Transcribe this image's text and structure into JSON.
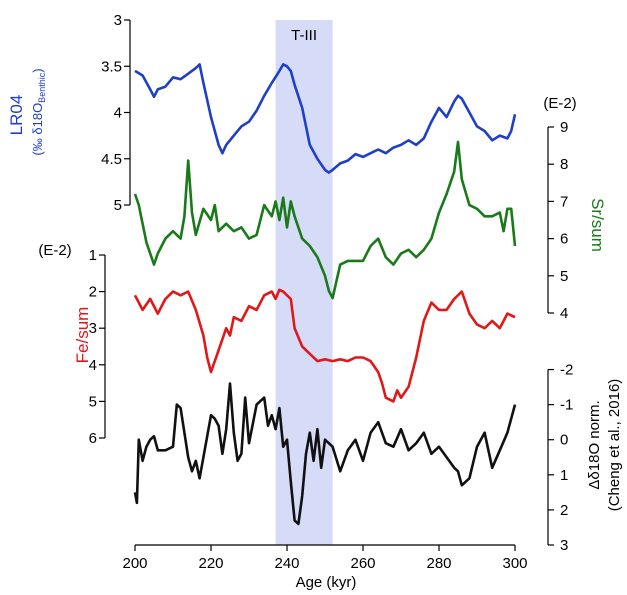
{
  "chart_data": {
    "type": "line",
    "xlabel": "Age (kyr)",
    "xlim": [
      200,
      300
    ],
    "x_ticks": [
      200,
      220,
      240,
      260,
      280,
      300
    ],
    "highlight": {
      "label": "T-III",
      "x_start": 237,
      "x_end": 252,
      "color": "#d6dcf8"
    },
    "series": [
      {
        "name": "LR04",
        "ylabel": "LR04",
        "ylabel_sub": "(‰ δ18O",
        "ylabel_subscript": "Benthic",
        "ylabel_close": ")",
        "color": "#1f3fc8",
        "axis_side": "left",
        "inverted": true,
        "ylim": [
          3,
          5
        ],
        "ticks": [
          3,
          3.5,
          4,
          4.5,
          5
        ],
        "tick_labels": [
          "3",
          "3.5",
          "4",
          "4.5",
          "5"
        ],
        "x": [
          200,
          202,
          204,
          205,
          206,
          208,
          210,
          212,
          214,
          216,
          217,
          218,
          220,
          222,
          223,
          224,
          226,
          228,
          230,
          232,
          234,
          236,
          238,
          239,
          240,
          241,
          242,
          244,
          245,
          246,
          248,
          250,
          251,
          252,
          254,
          256,
          258,
          260,
          262,
          264,
          266,
          268,
          270,
          272,
          274,
          276,
          278,
          280,
          282,
          284,
          285,
          286,
          288,
          290,
          292,
          294,
          296,
          298,
          299,
          300
        ],
        "values": [
          3.55,
          3.6,
          3.75,
          3.83,
          3.75,
          3.72,
          3.62,
          3.64,
          3.58,
          3.52,
          3.48,
          3.68,
          4.05,
          4.35,
          4.44,
          4.35,
          4.25,
          4.15,
          4.1,
          3.98,
          3.82,
          3.68,
          3.55,
          3.48,
          3.5,
          3.55,
          3.7,
          3.95,
          4.15,
          4.35,
          4.5,
          4.62,
          4.65,
          4.62,
          4.55,
          4.52,
          4.45,
          4.48,
          4.44,
          4.4,
          4.44,
          4.38,
          4.35,
          4.3,
          4.35,
          4.28,
          4.1,
          3.95,
          4.05,
          3.88,
          3.82,
          3.85,
          4.0,
          4.15,
          4.2,
          4.3,
          4.25,
          4.28,
          4.2,
          4.02
        ]
      },
      {
        "name": "Sr/sum",
        "ylabel": "Sr/sum",
        "unit": "(E-2)",
        "color": "#1a7a1a",
        "axis_side": "right",
        "inverted": false,
        "ylim": [
          4,
          9
        ],
        "ticks": [
          4,
          5,
          6,
          7,
          8,
          9
        ],
        "tick_labels": [
          "4",
          "5",
          "6",
          "7",
          "8",
          "9"
        ],
        "x": [
          200,
          201,
          202,
          203,
          204,
          205,
          206,
          208,
          210,
          212,
          213,
          214,
          215,
          216,
          218,
          220,
          221,
          222,
          224,
          226,
          228,
          230,
          232,
          234,
          236,
          237,
          238,
          239,
          240,
          241,
          242,
          244,
          246,
          248,
          250,
          251,
          252,
          254,
          256,
          258,
          260,
          262,
          264,
          266,
          268,
          270,
          272,
          274,
          276,
          278,
          280,
          282,
          284,
          285,
          286,
          288,
          290,
          292,
          294,
          296,
          297,
          298,
          299,
          300
        ],
        "values": [
          7.2,
          6.9,
          6.4,
          5.9,
          5.6,
          5.3,
          5.6,
          6.0,
          6.2,
          6.0,
          6.6,
          8.1,
          6.7,
          6.1,
          6.8,
          6.5,
          6.9,
          6.2,
          6.4,
          6.2,
          6.3,
          6.0,
          6.1,
          6.9,
          6.6,
          7.0,
          6.5,
          7.1,
          6.3,
          7.0,
          6.6,
          6.0,
          5.8,
          5.5,
          5.0,
          4.6,
          4.4,
          5.3,
          5.4,
          5.4,
          5.4,
          5.8,
          6.0,
          5.5,
          5.3,
          5.6,
          5.7,
          5.5,
          5.7,
          6.0,
          6.7,
          7.2,
          7.8,
          8.6,
          7.6,
          6.9,
          6.8,
          6.6,
          6.6,
          6.7,
          6.2,
          6.8,
          6.8,
          5.8
        ]
      },
      {
        "name": "Fe/sum",
        "ylabel": "Fe/sum",
        "unit": "(E-2)",
        "color": "#e01818",
        "axis_side": "left",
        "inverted": true,
        "ylim": [
          1,
          6
        ],
        "ticks": [
          1,
          2,
          3,
          4,
          5,
          6
        ],
        "tick_labels": [
          "1",
          "2",
          "3",
          "4",
          "5",
          "6"
        ],
        "x": [
          200,
          202,
          204,
          206,
          208,
          210,
          212,
          214,
          216,
          218,
          219,
          220,
          222,
          224,
          225,
          226,
          228,
          230,
          232,
          234,
          236,
          237,
          238,
          239,
          240,
          241,
          242,
          244,
          246,
          248,
          250,
          252,
          254,
          256,
          258,
          260,
          262,
          264,
          265,
          266,
          268,
          269,
          270,
          272,
          274,
          276,
          278,
          280,
          282,
          284,
          286,
          288,
          290,
          292,
          294,
          296,
          298,
          300
        ],
        "values": [
          2.1,
          2.5,
          2.2,
          2.6,
          2.2,
          2.0,
          2.1,
          2.0,
          2.5,
          3.2,
          3.8,
          4.2,
          3.6,
          3.0,
          3.2,
          2.7,
          2.8,
          2.4,
          2.5,
          2.1,
          2.0,
          2.2,
          1.95,
          2.0,
          2.1,
          2.2,
          3.0,
          3.5,
          3.7,
          3.9,
          3.85,
          3.9,
          3.85,
          3.9,
          3.8,
          3.8,
          3.9,
          4.2,
          4.5,
          4.9,
          5.0,
          4.7,
          4.9,
          4.6,
          3.8,
          2.8,
          2.3,
          2.5,
          2.5,
          2.2,
          2.0,
          2.6,
          2.9,
          3.0,
          2.8,
          3.0,
          2.6,
          2.7
        ]
      },
      {
        "name": "Δδ18O norm.",
        "ylabel": "Δδ18O norm.",
        "ylabel2": "(Cheng et al., 2016)",
        "color": "#111111",
        "axis_side": "right",
        "inverted": true,
        "ylim": [
          -2.5,
          3
        ],
        "ticks": [
          -2,
          -1,
          0,
          1,
          2,
          3
        ],
        "tick_labels": [
          "-2",
          "-1",
          "0",
          "1",
          "2",
          "3"
        ],
        "x": [
          200,
          200.5,
          201,
          202,
          203,
          204,
          205,
          206,
          208,
          210,
          211,
          212,
          214,
          215,
          216,
          217,
          218,
          220,
          221,
          222,
          223,
          224,
          225,
          226,
          227,
          228,
          229,
          230,
          232,
          234,
          235,
          236,
          237,
          238,
          239,
          240,
          241,
          242,
          243,
          244,
          245,
          246,
          247,
          248,
          249,
          250,
          252,
          254,
          256,
          258,
          260,
          262,
          264,
          266,
          268,
          270,
          272,
          274,
          276,
          278,
          280,
          282,
          284,
          285,
          286,
          288,
          290,
          292,
          294,
          296,
          298,
          300
        ],
        "values": [
          1.5,
          1.8,
          0.0,
          0.6,
          0.2,
          0.0,
          -0.1,
          0.3,
          0.3,
          0.2,
          -1.0,
          -0.9,
          0.5,
          0.9,
          0.6,
          1.1,
          0.5,
          -0.7,
          -0.6,
          -0.4,
          0.4,
          -0.3,
          -1.6,
          -0.2,
          0.6,
          0.4,
          -1.2,
          0.1,
          -1.0,
          -1.2,
          -0.4,
          -0.7,
          -0.3,
          -0.9,
          0.2,
          0.0,
          1.2,
          2.3,
          2.4,
          1.6,
          0.4,
          -0.2,
          0.6,
          -0.3,
          0.8,
          0.0,
          0.2,
          0.9,
          0.3,
          0.0,
          0.6,
          -0.2,
          -0.5,
          0.1,
          0.2,
          -0.3,
          0.3,
          0.1,
          -0.2,
          0.4,
          0.2,
          0.5,
          0.8,
          0.9,
          1.3,
          1.1,
          0.2,
          -0.2,
          0.8,
          0.3,
          -0.2,
          -1.0
        ]
      }
    ]
  }
}
